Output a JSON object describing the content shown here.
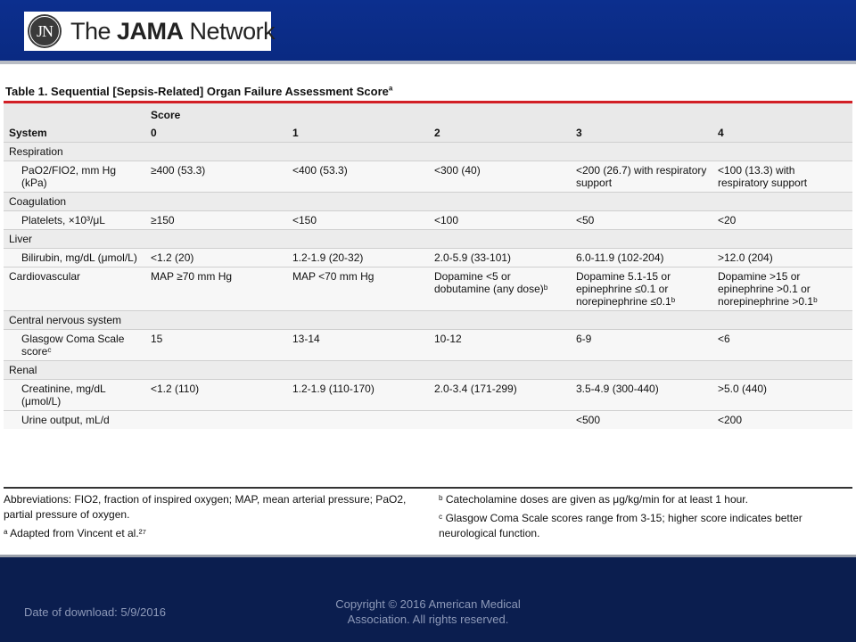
{
  "header": {
    "logo_mark": "JN",
    "logo_text_prefix": "The ",
    "logo_text_bold": "JAMA",
    "logo_text_suffix": " Network",
    "bg_color": "#0c2f8e"
  },
  "table": {
    "title": "Table 1. Sequential [Sepsis-Related] Organ Failure Assessment Score",
    "title_note": "a",
    "score_label": "Score",
    "system_label": "System",
    "score_columns": [
      "0",
      "1",
      "2",
      "3",
      "4"
    ],
    "rows": [
      {
        "type": "section",
        "label": "Respiration"
      },
      {
        "type": "item",
        "label": "PaO2/FIO2, mm Hg (kPa)",
        "cells": [
          "≥400 (53.3)",
          "<400 (53.3)",
          "<300 (40)",
          "<200 (26.7) with respiratory support",
          "<100 (13.3) with respiratory support"
        ]
      },
      {
        "type": "section",
        "label": "Coagulation"
      },
      {
        "type": "item",
        "label": "Platelets, ×10³/μL",
        "cells": [
          "≥150",
          "<150",
          "<100",
          "<50",
          "<20"
        ]
      },
      {
        "type": "section",
        "label": "Liver"
      },
      {
        "type": "item",
        "label": "Bilirubin, mg/dL (μmol/L)",
        "cells": [
          "<1.2 (20)",
          "1.2-1.9 (20-32)",
          "2.0-5.9 (33-101)",
          "6.0-11.9 (102-204)",
          ">12.0 (204)"
        ]
      },
      {
        "type": "item-top",
        "label": "Cardiovascular",
        "cells": [
          "MAP ≥70 mm Hg",
          "MAP <70 mm Hg",
          "Dopamine <5 or dobutamine (any dose)ᵇ",
          "Dopamine 5.1-15 or epinephrine ≤0.1 or norepinephrine ≤0.1ᵇ",
          "Dopamine >15 or epinephrine >0.1 or norepinephrine >0.1ᵇ"
        ]
      },
      {
        "type": "section",
        "label": "Central nervous system"
      },
      {
        "type": "item",
        "label": "Glasgow Coma Scale scoreᶜ",
        "cells": [
          "15",
          "13-14",
          "10-12",
          "6-9",
          "<6"
        ]
      },
      {
        "type": "section",
        "label": "Renal"
      },
      {
        "type": "item",
        "label": "Creatinine, mg/dL (μmol/L)",
        "cells": [
          "<1.2 (110)",
          "1.2-1.9 (110-170)",
          "2.0-3.4 (171-299)",
          "3.5-4.9 (300-440)",
          ">5.0 (440)"
        ]
      },
      {
        "type": "item",
        "label": "Urine output, mL/d",
        "cells": [
          "",
          "",
          "",
          "<500",
          "<200"
        ]
      }
    ]
  },
  "notes": {
    "abbrev": "Abbreviations: FIO2, fraction of inspired oxygen; MAP, mean arterial pressure; PaO2, partial pressure of oxygen.",
    "note_a": "ᵃ Adapted from Vincent et al.²⁷",
    "note_b": "ᵇ Catecholamine doses are given as μg/kg/min for at least 1 hour.",
    "note_c": "ᶜ Glasgow Coma Scale scores range from 3-15; higher score indicates better neurological function."
  },
  "footer": {
    "date_label": "Date of download:  5/9/2016",
    "copyright": "Copyright © 2016 American Medical Association. All rights reserved.",
    "bg_color": "#0b1e4f"
  }
}
